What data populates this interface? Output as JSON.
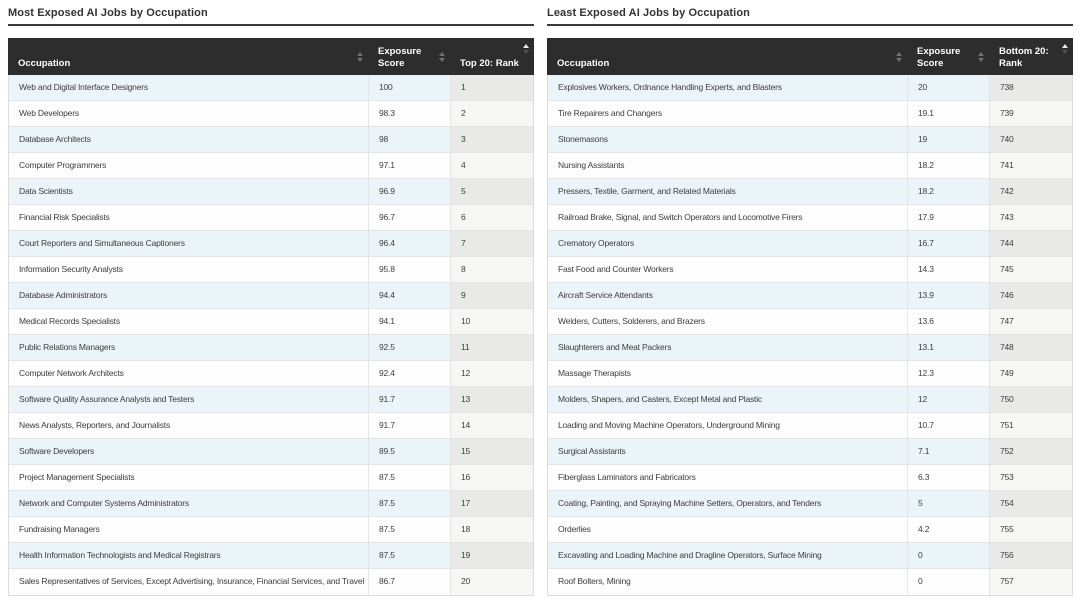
{
  "colors": {
    "header_background": "#2d2d2d",
    "header_text": "#ffffff",
    "row_stripe": "#eaf4f9",
    "row_plain": "#fdfdfd",
    "sorted_column_stripe": "#e9e9e8",
    "sorted_column_plain": "#f6f6f5",
    "title_text": "#333333",
    "cell_text": "#3e3e3e",
    "title_rule": "#3a3a3a"
  },
  "icons": {
    "unsorted": "sort-updown-icon",
    "sorted": "sort-asc-icon"
  },
  "chart_data": [
    {
      "type": "table",
      "title": "Most Exposed AI Jobs by Occupation",
      "columns": [
        "Occupation",
        "Exposure Score",
        "Top 20: Rank"
      ],
      "sort": {
        "column": "Top 20: Rank",
        "direction": "ascending"
      },
      "rows": [
        [
          "Web and Digital Interface Designers",
          "100",
          "1"
        ],
        [
          "Web Developers",
          "98.3",
          "2"
        ],
        [
          "Database Architects",
          "98",
          "3"
        ],
        [
          "Computer Programmers",
          "97.1",
          "4"
        ],
        [
          "Data Scientists",
          "96.9",
          "5"
        ],
        [
          "Financial Risk Specialists",
          "96.7",
          "6"
        ],
        [
          "Court Reporters and Simultaneous Captioners",
          "96.4",
          "7"
        ],
        [
          "Information Security Analysts",
          "95.8",
          "8"
        ],
        [
          "Database Administrators",
          "94.4",
          "9"
        ],
        [
          "Medical Records Specialists",
          "94.1",
          "10"
        ],
        [
          "Public Relations Managers",
          "92.5",
          "11"
        ],
        [
          "Computer Network Architects",
          "92.4",
          "12"
        ],
        [
          "Software Quality Assurance Analysts and Testers",
          "91.7",
          "13"
        ],
        [
          "News Analysts, Reporters, and Journalists",
          "91.7",
          "14"
        ],
        [
          "Software Developers",
          "89.5",
          "15"
        ],
        [
          "Project Management Specialists",
          "87.5",
          "16"
        ],
        [
          "Network and Computer Systems Administrators",
          "87.5",
          "17"
        ],
        [
          "Fundraising Managers",
          "87.5",
          "18"
        ],
        [
          "Health Information Technologists and Medical Registrars",
          "87.5",
          "19"
        ],
        [
          "Sales Representatives of Services, Except Advertising, Insurance, Financial Services, and Travel",
          "86.7",
          "20"
        ]
      ]
    },
    {
      "type": "table",
      "title": "Least Exposed AI Jobs by Occupation",
      "columns": [
        "Occupation",
        "Exposure Score",
        "Bottom 20: Rank"
      ],
      "sort": {
        "column": "Bottom 20: Rank",
        "direction": "ascending"
      },
      "rows": [
        [
          "Explosives Workers, Ordnance Handling Experts, and Blasters",
          "20",
          "738"
        ],
        [
          "Tire Repairers and Changers",
          "19.1",
          "739"
        ],
        [
          "Stonemasons",
          "19",
          "740"
        ],
        [
          "Nursing Assistants",
          "18.2",
          "741"
        ],
        [
          "Pressers, Textile, Garment, and Related Materials",
          "18.2",
          "742"
        ],
        [
          "Railroad Brake, Signal, and Switch Operators and Locomotive Firers",
          "17.9",
          "743"
        ],
        [
          "Crematory Operators",
          "16.7",
          "744"
        ],
        [
          "Fast Food and Counter Workers",
          "14.3",
          "745"
        ],
        [
          "Aircraft Service Attendants",
          "13.9",
          "746"
        ],
        [
          "Welders, Cutters, Solderers, and Brazers",
          "13.6",
          "747"
        ],
        [
          "Slaughterers and Meat Packers",
          "13.1",
          "748"
        ],
        [
          "Massage Therapists",
          "12.3",
          "749"
        ],
        [
          "Molders, Shapers, and Casters, Except Metal and Plastic",
          "12",
          "750"
        ],
        [
          "Loading and Moving Machine Operators, Underground Mining",
          "10.7",
          "751"
        ],
        [
          "Surgical Assistants",
          "7.1",
          "752"
        ],
        [
          "Fiberglass Laminators and Fabricators",
          "6.3",
          "753"
        ],
        [
          "Coating, Painting, and Spraying Machine Setters, Operators, and Tenders",
          "5",
          "754"
        ],
        [
          "Orderlies",
          "4.2",
          "755"
        ],
        [
          "Excavating and Loading Machine and Dragline Operators, Surface Mining",
          "0",
          "756"
        ],
        [
          "Roof Bolters, Mining",
          "0",
          "757"
        ]
      ]
    }
  ]
}
